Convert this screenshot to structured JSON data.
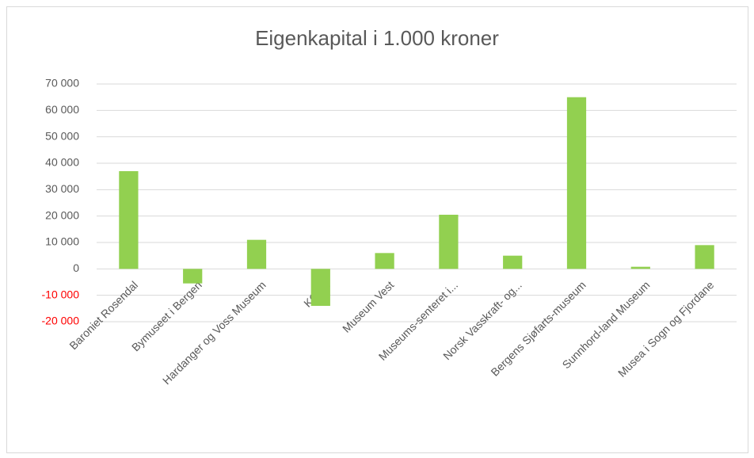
{
  "chart_data": {
    "type": "bar",
    "title": "Eigenkapital i 1.000 kroner",
    "categories": [
      "Baroniet Rosendal",
      "Bymuseet i Bergen",
      "Hardanger og Voss Museum",
      "KODE",
      "Museum Vest",
      "Museums-senteret i...",
      "Norsk Vasskraft- og...",
      "Bergens Sjøfarts-museum",
      "Sunnhord-land Museum",
      "Musea i Sogn  og Fjordane"
    ],
    "values": [
      37000,
      -5500,
      11000,
      -14000,
      6000,
      20500,
      5000,
      65000,
      800,
      9000
    ],
    "color": "#92d050",
    "ylim": [
      -20000,
      70000
    ],
    "yticks": [
      {
        "value": -20000,
        "label": "-20 000"
      },
      {
        "value": -10000,
        "label": "-10 000"
      },
      0,
      {
        "value": 10000,
        "label": "10 000"
      },
      {
        "value": 20000,
        "label": "20 000"
      },
      {
        "value": 30000,
        "label": "30 000"
      },
      {
        "value": 40000,
        "label": "40 000"
      },
      {
        "value": 50000,
        "label": "50 000"
      },
      {
        "value": 60000,
        "label": "60 000"
      },
      {
        "value": 70000,
        "label": "70 000"
      }
    ],
    "negative_label_color": "#ff0000",
    "grid": true
  }
}
